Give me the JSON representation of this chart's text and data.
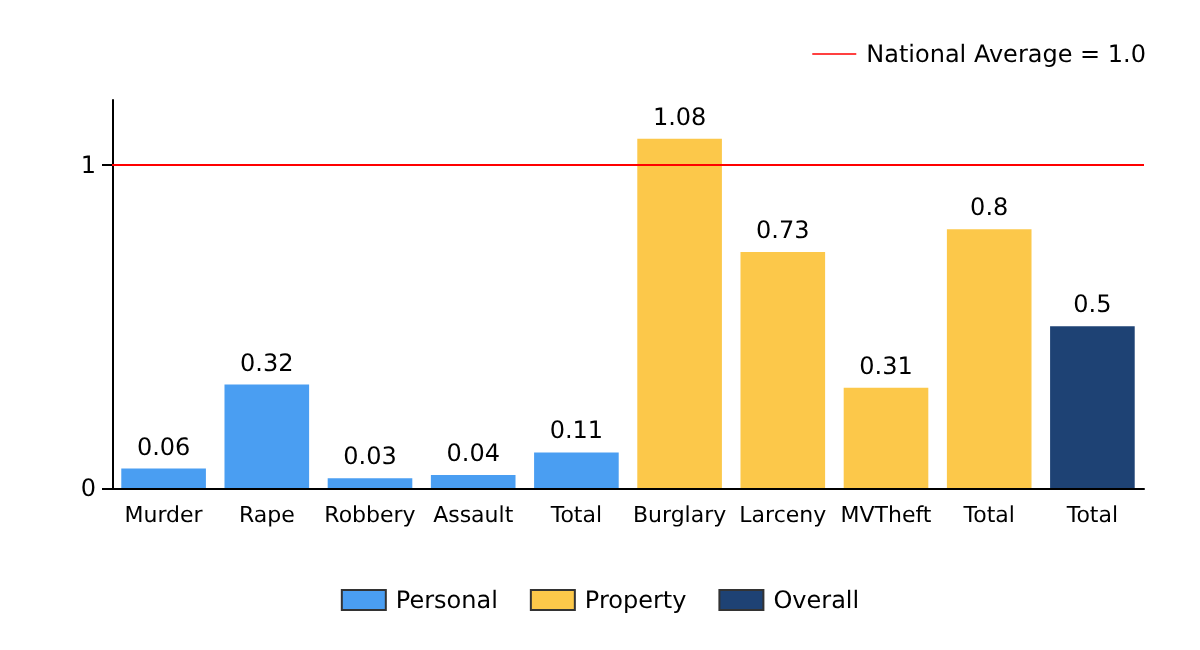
{
  "chart_data": {
    "type": "bar",
    "categories": [
      "Murder",
      "Rape",
      "Robbery",
      "Assault",
      "Total",
      "Burglary",
      "Larceny",
      "MVTheft",
      "Total",
      "Total"
    ],
    "series": [
      {
        "name": "Personal",
        "color": "#4a9ef2",
        "values": [
          0.06,
          0.32,
          0.03,
          0.04,
          0.11,
          null,
          null,
          null,
          null,
          null
        ]
      },
      {
        "name": "Property",
        "color": "#fcc84a",
        "values": [
          null,
          null,
          null,
          null,
          null,
          1.08,
          0.73,
          0.31,
          0.8,
          null
        ]
      },
      {
        "name": "Overall",
        "color": "#1e4274",
        "values": [
          null,
          null,
          null,
          null,
          null,
          null,
          null,
          null,
          null,
          0.5
        ]
      }
    ],
    "stacked": true,
    "ylim": [
      0,
      1.2
    ],
    "yticks": [
      0,
      1
    ],
    "legend": "bottom",
    "data_labels": true,
    "ref_lines": [
      {
        "axis": "y",
        "value": 1,
        "label": "National Average = 1.0",
        "color": "#ff0000"
      }
    ]
  }
}
